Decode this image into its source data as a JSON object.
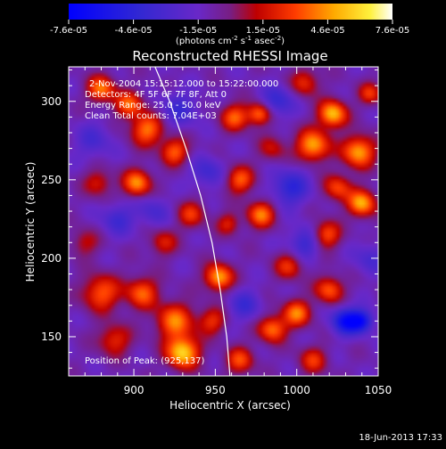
{
  "chart_data": {
    "type": "heatmap",
    "title": "Reconstructed RHESSI Image",
    "xlabel": "Heliocentric X (arcsec)",
    "ylabel": "Heliocentric Y (arcsec)",
    "xlim": [
      860,
      1050
    ],
    "ylim": [
      125,
      322
    ],
    "x_ticks": [
      900,
      950,
      1000,
      1050
    ],
    "y_ticks": [
      150,
      200,
      250,
      300
    ],
    "colorbar": {
      "min": -7.6e-05,
      "max": 7.6e-05,
      "tick_labels": [
        "-7.6e-05",
        "-4.6e-05",
        "-1.5e-05",
        "1.5e-05",
        "4.6e-05",
        "7.6e-05"
      ],
      "unit_parts": [
        "(photons cm",
        "-2",
        " s",
        "-1",
        " asec",
        "-2",
        ")"
      ]
    },
    "annotations": [
      "2-Nov-2004 15:15:12.000 to 15:22:00.000",
      "Detectors: 4F 5F 6F 7F 8F, Att 0",
      "Energy Range: 25.0 - 50.0 keV",
      "Clean    Total counts: 7.04E+03"
    ],
    "peak_label": "Position of Peak: (925,137)",
    "peak": [
      925,
      137
    ],
    "limb_curve": [
      [
        913,
        322
      ],
      [
        922,
        300
      ],
      [
        932,
        270
      ],
      [
        941,
        240
      ],
      [
        948,
        210
      ],
      [
        953,
        180
      ],
      [
        957,
        150
      ],
      [
        959,
        125
      ]
    ],
    "grid": false,
    "blobs": [
      {
        "x": 880,
        "y": 308,
        "v": 1.0,
        "s": 6
      },
      {
        "x": 897,
        "y": 298,
        "v": 0.9,
        "s": 6
      },
      {
        "x": 908,
        "y": 282,
        "v": 1.0,
        "s": 7
      },
      {
        "x": 902,
        "y": 248,
        "v": 1.1,
        "s": 6
      },
      {
        "x": 878,
        "y": 248,
        "v": 0.6,
        "s": 6
      },
      {
        "x": 925,
        "y": 268,
        "v": 0.9,
        "s": 6
      },
      {
        "x": 935,
        "y": 228,
        "v": 0.7,
        "s": 6
      },
      {
        "x": 918,
        "y": 210,
        "v": 0.6,
        "s": 6
      },
      {
        "x": 880,
        "y": 178,
        "v": 0.9,
        "s": 8
      },
      {
        "x": 905,
        "y": 178,
        "v": 0.9,
        "s": 7
      },
      {
        "x": 925,
        "y": 160,
        "v": 1.0,
        "s": 8
      },
      {
        "x": 930,
        "y": 140,
        "v": 1.4,
        "s": 7
      },
      {
        "x": 888,
        "y": 148,
        "v": 0.7,
        "s": 7
      },
      {
        "x": 952,
        "y": 188,
        "v": 1.2,
        "s": 6
      },
      {
        "x": 948,
        "y": 160,
        "v": 0.7,
        "s": 6
      },
      {
        "x": 962,
        "y": 290,
        "v": 0.9,
        "s": 6
      },
      {
        "x": 977,
        "y": 292,
        "v": 1.0,
        "s": 5
      },
      {
        "x": 965,
        "y": 250,
        "v": 0.9,
        "s": 6
      },
      {
        "x": 978,
        "y": 228,
        "v": 1.0,
        "s": 6
      },
      {
        "x": 958,
        "y": 222,
        "v": 0.6,
        "s": 5
      },
      {
        "x": 1005,
        "y": 312,
        "v": 0.7,
        "s": 6
      },
      {
        "x": 1010,
        "y": 272,
        "v": 1.2,
        "s": 7
      },
      {
        "x": 1022,
        "y": 292,
        "v": 1.3,
        "s": 6
      },
      {
        "x": 1038,
        "y": 268,
        "v": 1.2,
        "s": 7
      },
      {
        "x": 1040,
        "y": 235,
        "v": 1.2,
        "s": 6
      },
      {
        "x": 1025,
        "y": 245,
        "v": 0.8,
        "s": 6
      },
      {
        "x": 1018,
        "y": 215,
        "v": 0.9,
        "s": 6
      },
      {
        "x": 995,
        "y": 195,
        "v": 0.7,
        "s": 6
      },
      {
        "x": 1000,
        "y": 165,
        "v": 1.0,
        "s": 6
      },
      {
        "x": 985,
        "y": 155,
        "v": 1.0,
        "s": 6
      },
      {
        "x": 1020,
        "y": 180,
        "v": 0.9,
        "s": 6
      },
      {
        "x": 1010,
        "y": 135,
        "v": 0.7,
        "s": 6
      },
      {
        "x": 965,
        "y": 135,
        "v": 0.8,
        "s": 6
      },
      {
        "x": 1045,
        "y": 305,
        "v": 0.7,
        "s": 5
      },
      {
        "x": 870,
        "y": 210,
        "v": 0.5,
        "s": 6
      },
      {
        "x": 985,
        "y": 270,
        "v": 0.5,
        "s": 6
      },
      {
        "x": 890,
        "y": 225,
        "v": -0.5,
        "s": 7
      },
      {
        "x": 928,
        "y": 295,
        "v": -0.5,
        "s": 8
      },
      {
        "x": 996,
        "y": 245,
        "v": -0.7,
        "s": 8
      },
      {
        "x": 1030,
        "y": 160,
        "v": -1.1,
        "s": 6
      },
      {
        "x": 1040,
        "y": 160,
        "v": -1.0,
        "s": 5
      },
      {
        "x": 988,
        "y": 300,
        "v": -0.6,
        "s": 7
      },
      {
        "x": 1005,
        "y": 210,
        "v": -0.6,
        "s": 7
      },
      {
        "x": 945,
        "y": 255,
        "v": -0.5,
        "s": 7
      },
      {
        "x": 968,
        "y": 170,
        "v": -0.5,
        "s": 7
      },
      {
        "x": 875,
        "y": 275,
        "v": -0.4,
        "s": 8
      },
      {
        "x": 912,
        "y": 230,
        "v": -0.4,
        "s": 7
      },
      {
        "x": 1045,
        "y": 200,
        "v": -0.4,
        "s": 7
      }
    ]
  },
  "footer": {
    "timestamp": "18-Jun-2013 17:33"
  }
}
